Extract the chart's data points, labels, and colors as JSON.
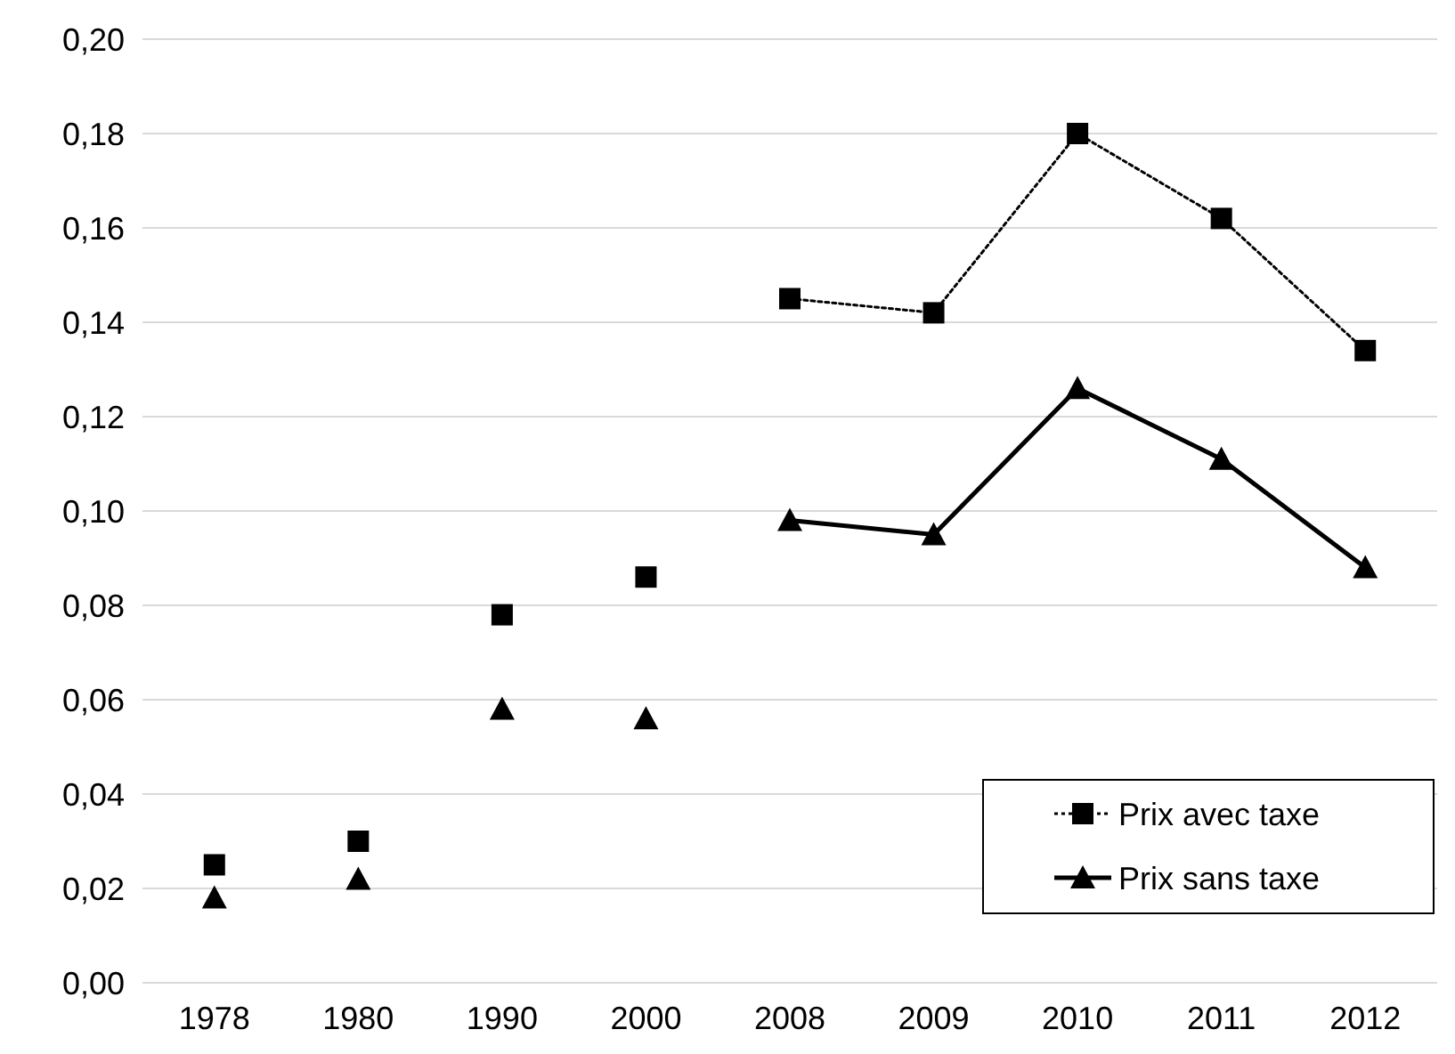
{
  "chart_data": {
    "type": "line",
    "categories": [
      "1978",
      "1980",
      "1990",
      "2000",
      "2008",
      "2009",
      "2010",
      "2011",
      "2012"
    ],
    "series": [
      {
        "name": "Prix avec taxe",
        "color": "#000000",
        "marker": "square",
        "line_style": "dotted",
        "values": [
          null,
          null,
          null,
          null,
          0.145,
          0.142,
          0.18,
          0.162,
          0.134
        ]
      },
      {
        "name": "Prix sans taxe",
        "color": "#000000",
        "marker": "triangle",
        "line_style": "solid",
        "values": [
          null,
          null,
          null,
          null,
          0.098,
          0.095,
          0.126,
          0.111,
          0.088
        ]
      },
      {
        "type": "scatter",
        "color": "#000000",
        "marker": "square",
        "values": [
          0.025,
          0.03,
          0.078,
          0.086,
          null,
          null,
          null,
          null,
          null
        ]
      },
      {
        "type": "scatter",
        "color": "#000000",
        "marker": "triangle",
        "values": [
          0.018,
          0.022,
          0.058,
          0.056,
          null,
          null,
          null,
          null,
          null
        ]
      }
    ],
    "ylim": [
      0,
      0.2
    ],
    "yticks": [
      {
        "value": 0,
        "label": "0,00"
      },
      {
        "value": 0.02,
        "label": "0,02"
      },
      {
        "value": 0.04,
        "label": "0,04"
      },
      {
        "value": 0.06,
        "label": "0,06"
      },
      {
        "value": 0.08,
        "label": "0,08"
      },
      {
        "value": 0.1,
        "label": "0,10"
      },
      {
        "value": 0.12,
        "label": "0,12"
      },
      {
        "value": 0.14,
        "label": "0,14"
      },
      {
        "value": 0.16,
        "label": "0,16"
      },
      {
        "value": 0.18,
        "label": "0,18"
      },
      {
        "value": 0.2,
        "label": "0,20"
      }
    ],
    "grid": "y",
    "legend": "bottom right"
  }
}
